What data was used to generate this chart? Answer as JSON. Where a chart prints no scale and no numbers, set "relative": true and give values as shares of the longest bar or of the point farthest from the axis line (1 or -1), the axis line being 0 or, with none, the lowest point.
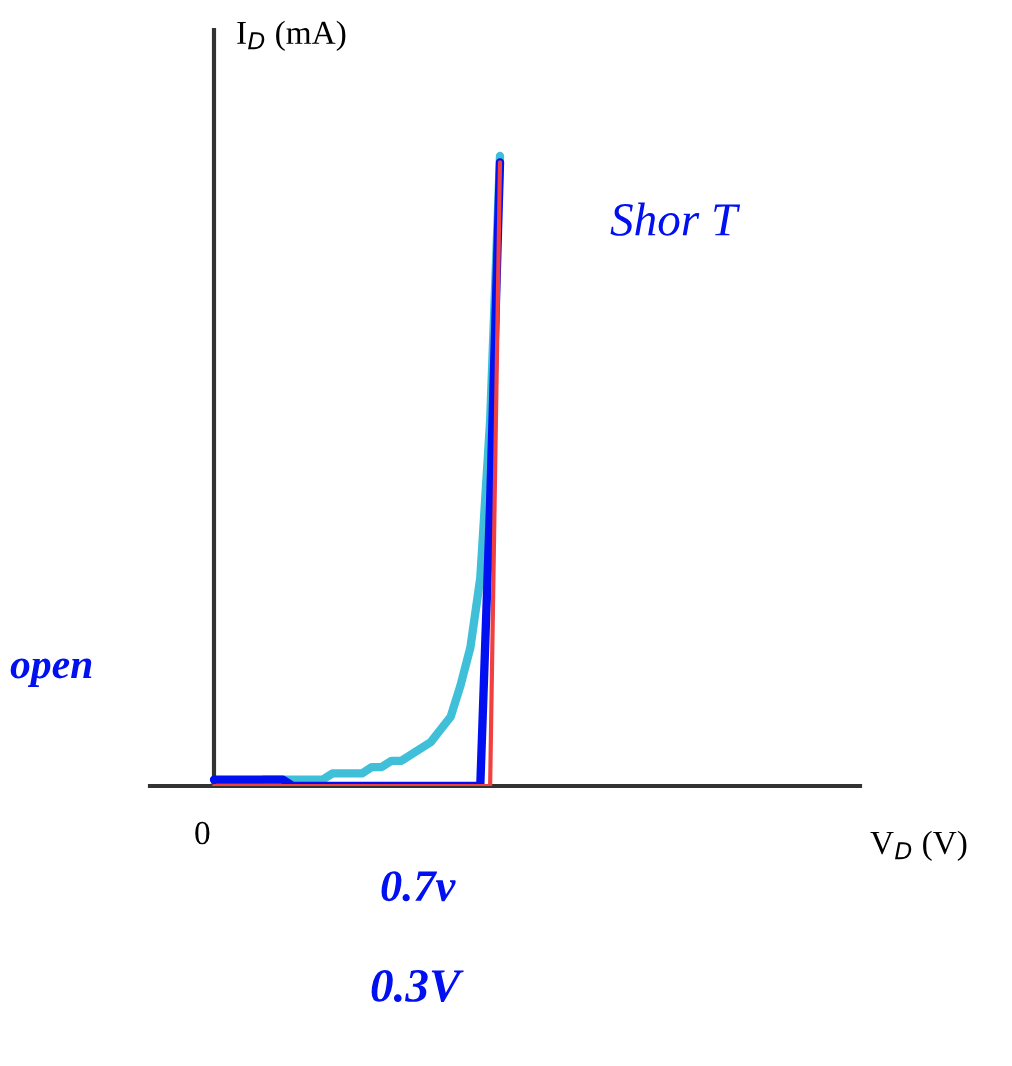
{
  "chart_data": {
    "type": "line",
    "relative": true,
    "ylabel": "I$_{D}$ (mA)",
    "categories": [
      null,
      null,
      null,
      null,
      null,
      null,
      null,
      null,
      null,
      null,
      null,
      null,
      null,
      null,
      null,
      null,
      null,
      null,
      null,
      null,
      null,
      null,
      null,
      null,
      null,
      null,
      null,
      null,
      null,
      null
    ],
    "series": [
      {
        "color": "#40c0d8",
        "values": [
          0,
          0,
          0,
          0,
          0,
          0.01,
          0.01,
          0.01,
          0.01,
          0.01,
          0.01,
          0.01,
          0.02,
          0.02,
          0.02,
          0.02,
          0.03,
          0.03,
          0.04,
          0.04,
          0.05,
          0.06,
          0.07,
          0.09,
          0.11,
          0.16,
          0.22,
          0.33,
          0.58,
          1.0
        ]
      },
      {
        "color": "#f04040",
        "values": [
          0,
          0,
          0,
          0,
          0,
          0,
          0,
          0,
          0,
          0,
          0,
          0,
          0,
          0,
          0,
          0,
          0,
          0,
          0,
          0,
          0,
          0,
          0,
          0,
          0,
          0,
          0,
          0,
          0,
          0.99
        ]
      },
      {
        "color": "#0010f0",
        "values": [
          0.01,
          0.01,
          0.01,
          0.01,
          0.01,
          0.01,
          0.01,
          0.01,
          0,
          0,
          0,
          0,
          0,
          0,
          0,
          0,
          0,
          0,
          0,
          0,
          0,
          0,
          0,
          0,
          0,
          0,
          0,
          0,
          0.45,
          0.99
        ]
      }
    ],
    "annotations": [
      "0",
      "Shor T",
      "open",
      "0.7v",
      "0.3V",
      "V$_{D}$ (V)"
    ]
  }
}
